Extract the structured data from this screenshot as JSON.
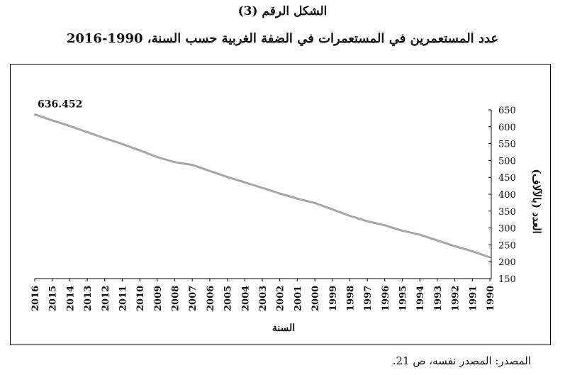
{
  "figure_label": "الشكل الرقم (3)",
  "figure_title": "عدد المستعمرين في المستعمرات في الضفة الغربية حسب السنة، 1990-2016",
  "source_note": "المصدر: المصدر نفسه، ص 21.",
  "colors": {
    "line": "#a6a6a6",
    "axis": "#000000",
    "text": "#111111"
  },
  "chart_data": {
    "type": "line",
    "title": "عدد المستعمرين في المستعمرات في الضفة الغربية حسب السنة، 1990-2016",
    "xlabel": "السنة",
    "ylabel": "العدد (بالآلاف)",
    "x_direction": "reversed",
    "y_axis_side": "right",
    "grid": false,
    "ylim": [
      150,
      650
    ],
    "yticks": [
      150,
      200,
      250,
      300,
      350,
      400,
      450,
      500,
      550,
      600,
      650
    ],
    "categories": [
      "2016",
      "2015",
      "2014",
      "2013",
      "2012",
      "2011",
      "2010",
      "2009",
      "2008",
      "2007",
      "2006",
      "2005",
      "2004",
      "2003",
      "2002",
      "2001",
      "2000",
      "1999",
      "1998",
      "1997",
      "1996",
      "1995",
      "1994",
      "1993",
      "1992",
      "1991",
      "1990"
    ],
    "series": [
      {
        "values": [
          636.452,
          619,
          602,
          584,
          566,
          549,
          530,
          510,
          495,
          487,
          469,
          451,
          435,
          419,
          402,
          387,
          374,
          355,
          336,
          320,
          308,
          292,
          280,
          263,
          246,
          231,
          213
        ]
      }
    ],
    "annotations": [
      {
        "category": "2016",
        "text": "636.452"
      }
    ]
  }
}
